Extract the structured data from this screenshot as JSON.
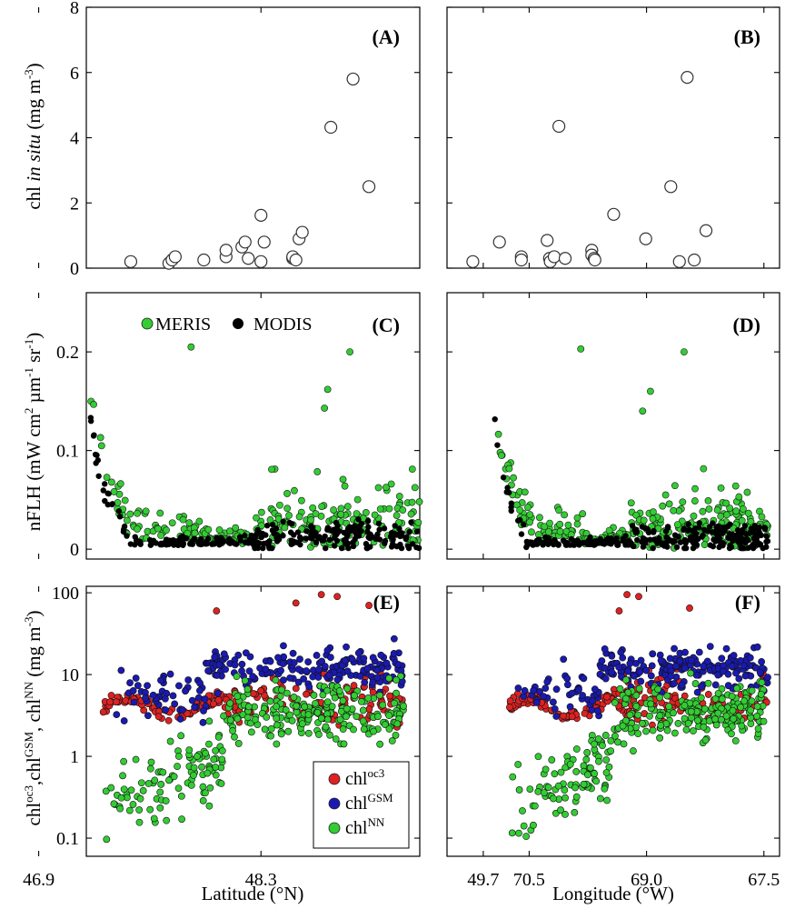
{
  "chart_data": [
    {
      "panel": "(A)",
      "type": "scatter",
      "xaxis": "latitude",
      "yaxis": "insitu",
      "ylim": [
        0,
        8
      ],
      "yticks": [
        0,
        2,
        4,
        6,
        8
      ],
      "series": [
        {
          "name": "in situ",
          "style": "open",
          "x": [
            47.48,
            47.72,
            47.74,
            47.76,
            47.94,
            48.08,
            48.08,
            48.18,
            48.2,
            48.22,
            48.3,
            48.3,
            48.32,
            48.5,
            48.5,
            48.52,
            48.54,
            48.56,
            48.74,
            48.88,
            48.98
          ],
          "y": [
            0.2,
            0.15,
            0.25,
            0.35,
            0.25,
            0.35,
            0.55,
            0.65,
            0.8,
            0.3,
            0.2,
            1.62,
            0.8,
            0.3,
            0.35,
            0.25,
            0.9,
            1.1,
            4.32,
            5.8,
            2.5
          ]
        }
      ]
    },
    {
      "panel": "(B)",
      "type": "scatter",
      "xaxis": "longitude",
      "yaxis": "insitu",
      "ylim": [
        0,
        8
      ],
      "yticks": [
        0,
        2,
        4,
        6,
        8
      ],
      "series": [
        {
          "name": "in situ",
          "style": "open",
          "x": [
            71.22,
            70.88,
            70.6,
            70.6,
            70.27,
            70.24,
            70.23,
            70.18,
            70.12,
            70.04,
            69.7,
            69.7,
            69.67,
            69.66,
            69.42,
            69.01,
            68.69,
            68.58,
            68.48,
            68.39,
            68.24
          ],
          "y": [
            0.2,
            0.8,
            0.35,
            0.25,
            0.85,
            0.3,
            0.2,
            0.35,
            4.35,
            0.3,
            0.55,
            0.4,
            0.3,
            0.25,
            1.65,
            0.9,
            2.5,
            0.2,
            5.85,
            0.25,
            1.15
          ]
        }
      ]
    },
    {
      "panel": "(C)",
      "type": "scatter",
      "xaxis": "latitude",
      "yaxis": "flh",
      "ylim": [
        -0.01,
        0.26
      ],
      "yticks": [
        0,
        0.1,
        0.2
      ],
      "legend": [
        "MERIS",
        "MODIS"
      ],
      "legend_position": "top-left",
      "series": [
        {
          "name": "MERIS",
          "color": "#33cc33"
        },
        {
          "name": "MODIS",
          "color": "#000000"
        }
      ]
    },
    {
      "panel": "(D)",
      "type": "scatter",
      "xaxis": "longitude",
      "yaxis": "flh",
      "ylim": [
        -0.01,
        0.26
      ],
      "yticks": [
        0,
        0.1,
        0.2
      ],
      "series": [
        {
          "name": "MERIS",
          "color": "#33cc33"
        },
        {
          "name": "MODIS",
          "color": "#000000"
        }
      ]
    },
    {
      "panel": "(E)",
      "type": "scatter",
      "xaxis": "latitude",
      "yaxis": "chl",
      "yscale": "log",
      "ylim": [
        0.06,
        120
      ],
      "yticks": [
        0.1,
        1,
        10,
        100
      ],
      "legend": [
        "chl",
        "chl",
        "chl"
      ],
      "legend_superscripts": [
        "oc3",
        "GSM",
        "NN"
      ],
      "legend_position": "bottom-right",
      "series": [
        {
          "name": "chl oc3",
          "color": "#dd2222"
        },
        {
          "name": "chl GSM",
          "color": "#1a1ab0"
        },
        {
          "name": "chl NN",
          "color": "#33cc33"
        }
      ]
    },
    {
      "panel": "(F)",
      "type": "scatter",
      "xaxis": "longitude",
      "yaxis": "chl",
      "yscale": "log",
      "ylim": [
        0.06,
        120
      ],
      "yticks": [
        0.1,
        1,
        10,
        100
      ],
      "series": [
        {
          "name": "chl oc3",
          "color": "#dd2222"
        },
        {
          "name": "chl GSM",
          "color": "#1a1ab0"
        },
        {
          "name": "chl NN",
          "color": "#33cc33"
        }
      ]
    }
  ],
  "axes": {
    "latitude": {
      "label": "Latitude (°N)",
      "range": [
        47.2,
        49.3
      ],
      "ticks": [
        "46.9",
        "48.3",
        "49.7"
      ],
      "tick_values": [
        46.9,
        48.3,
        49.7
      ]
    },
    "longitude": {
      "label": "Longitude (°W)",
      "range": [
        71.55,
        67.3
      ],
      "ticks": [
        "70.5",
        "69.0",
        "67.5"
      ],
      "tick_values": [
        70.5,
        69.0,
        67.5
      ]
    },
    "ylabels": {
      "insitu": {
        "main": "chl ",
        "italic": "in situ",
        "rest": " (mg m",
        "sup": "-3",
        "end": ")"
      },
      "flh": {
        "main": "nFLH (mW cm",
        "sup1": "2",
        "mid1": " µm",
        "sup2": "-1",
        "mid2": " sr",
        "sup3": "-1",
        "end": ")"
      },
      "chl": {
        "c1": "chl",
        "s1": "oc3",
        "c2": ",chl",
        "s2": "GSM",
        "c3": ", chl",
        "s3": "NN",
        "end": " (mg m",
        "s4": "-3",
        "e2": ")"
      }
    }
  }
}
